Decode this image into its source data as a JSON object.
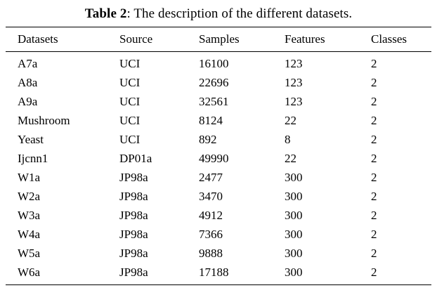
{
  "caption": {
    "label": "Table 2",
    "text": ": The description of the different datasets."
  },
  "table": {
    "columns": [
      "Datasets",
      "Source",
      "Samples",
      "Features",
      "Classes"
    ],
    "rows": [
      [
        "A7a",
        "UCI",
        "16100",
        "123",
        "2"
      ],
      [
        "A8a",
        "UCI",
        "22696",
        "123",
        "2"
      ],
      [
        "A9a",
        "UCI",
        "32561",
        "123",
        "2"
      ],
      [
        "Mushroom",
        "UCI",
        "8124",
        "22",
        "2"
      ],
      [
        "Yeast",
        "UCI",
        "892",
        "8",
        "2"
      ],
      [
        "Ijcnn1",
        "DP01a",
        "49990",
        "22",
        "2"
      ],
      [
        "W1a",
        "JP98a",
        "2477",
        "300",
        "2"
      ],
      [
        "W2a",
        "JP98a",
        "3470",
        "300",
        "2"
      ],
      [
        "W3a",
        "JP98a",
        "4912",
        "300",
        "2"
      ],
      [
        "W4a",
        "JP98a",
        "7366",
        "300",
        "2"
      ],
      [
        "W5a",
        "JP98a",
        "9888",
        "300",
        "2"
      ],
      [
        "W6a",
        "JP98a",
        "17188",
        "300",
        "2"
      ]
    ]
  }
}
